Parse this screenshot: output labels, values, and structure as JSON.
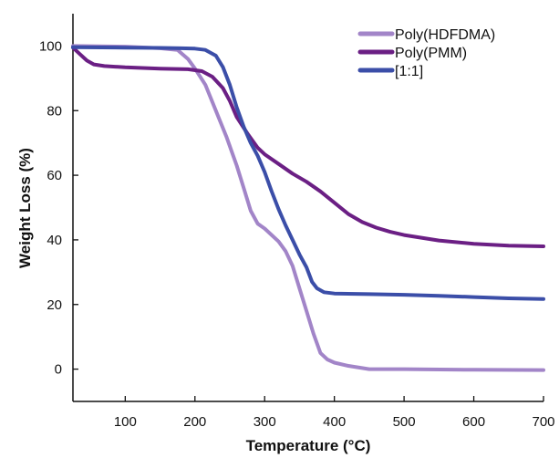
{
  "chart_data": {
    "type": "line",
    "title": "",
    "xlabel": "Temperature (°C)",
    "ylabel": "Weight Loss (%)",
    "xlim": [
      25,
      700
    ],
    "ylim": [
      -10,
      110
    ],
    "xticks": [
      100,
      200,
      300,
      400,
      500,
      600,
      700
    ],
    "yticks": [
      0,
      20,
      40,
      60,
      80,
      100
    ],
    "xtick_labels": [
      "100",
      "200",
      "300",
      "400",
      "500",
      "600",
      "700"
    ],
    "ytick_labels": [
      "0",
      "20",
      "40",
      "60",
      "80",
      "100"
    ],
    "grid": false,
    "legend_position": "top-right",
    "series": [
      {
        "name": "Poly(HDFDMA)",
        "color": "#a285c8",
        "points": [
          [
            25,
            100
          ],
          [
            100,
            99.8
          ],
          [
            150,
            99.3
          ],
          [
            175,
            98.8
          ],
          [
            190,
            96
          ],
          [
            200,
            93
          ],
          [
            215,
            88
          ],
          [
            230,
            80
          ],
          [
            245,
            72
          ],
          [
            260,
            63
          ],
          [
            270,
            56
          ],
          [
            280,
            49
          ],
          [
            290,
            45
          ],
          [
            300,
            43.5
          ],
          [
            310,
            41.5
          ],
          [
            320,
            39.5
          ],
          [
            330,
            36.5
          ],
          [
            340,
            32
          ],
          [
            350,
            25
          ],
          [
            360,
            18
          ],
          [
            370,
            11
          ],
          [
            380,
            5
          ],
          [
            390,
            3
          ],
          [
            400,
            2
          ],
          [
            420,
            1
          ],
          [
            450,
            0
          ],
          [
            500,
            0
          ],
          [
            600,
            -0.2
          ],
          [
            700,
            -0.3
          ]
        ]
      },
      {
        "name": "Poly(PMM)",
        "color": "#6b1f84",
        "points": [
          [
            25,
            99.5
          ],
          [
            35,
            97.5
          ],
          [
            45,
            95.5
          ],
          [
            55,
            94.3
          ],
          [
            70,
            93.8
          ],
          [
            100,
            93.4
          ],
          [
            150,
            93
          ],
          [
            190,
            92.8
          ],
          [
            210,
            92.2
          ],
          [
            225,
            90.5
          ],
          [
            240,
            87
          ],
          [
            250,
            83
          ],
          [
            260,
            78
          ],
          [
            275,
            73
          ],
          [
            290,
            68.5
          ],
          [
            300,
            66.5
          ],
          [
            320,
            63.5
          ],
          [
            340,
            60.5
          ],
          [
            360,
            58
          ],
          [
            380,
            55
          ],
          [
            400,
            51.5
          ],
          [
            420,
            48
          ],
          [
            440,
            45.5
          ],
          [
            460,
            43.8
          ],
          [
            480,
            42.5
          ],
          [
            500,
            41.5
          ],
          [
            550,
            39.8
          ],
          [
            600,
            38.8
          ],
          [
            650,
            38.2
          ],
          [
            700,
            38
          ]
        ]
      },
      {
        "name": "[1:1]",
        "color": "#3b4ea8",
        "points": [
          [
            25,
            99.6
          ],
          [
            100,
            99.5
          ],
          [
            150,
            99.4
          ],
          [
            180,
            99.3
          ],
          [
            200,
            99.2
          ],
          [
            215,
            98.8
          ],
          [
            230,
            97
          ],
          [
            240,
            93.5
          ],
          [
            250,
            88
          ],
          [
            260,
            81
          ],
          [
            270,
            75
          ],
          [
            280,
            70
          ],
          [
            290,
            66
          ],
          [
            300,
            61
          ],
          [
            310,
            55
          ],
          [
            320,
            49.5
          ],
          [
            330,
            44.5
          ],
          [
            340,
            40
          ],
          [
            350,
            35.5
          ],
          [
            360,
            31.5
          ],
          [
            368,
            27
          ],
          [
            375,
            25
          ],
          [
            385,
            23.8
          ],
          [
            400,
            23.4
          ],
          [
            450,
            23.2
          ],
          [
            500,
            23
          ],
          [
            550,
            22.7
          ],
          [
            600,
            22.3
          ],
          [
            650,
            21.9
          ],
          [
            700,
            21.7
          ]
        ]
      }
    ]
  }
}
